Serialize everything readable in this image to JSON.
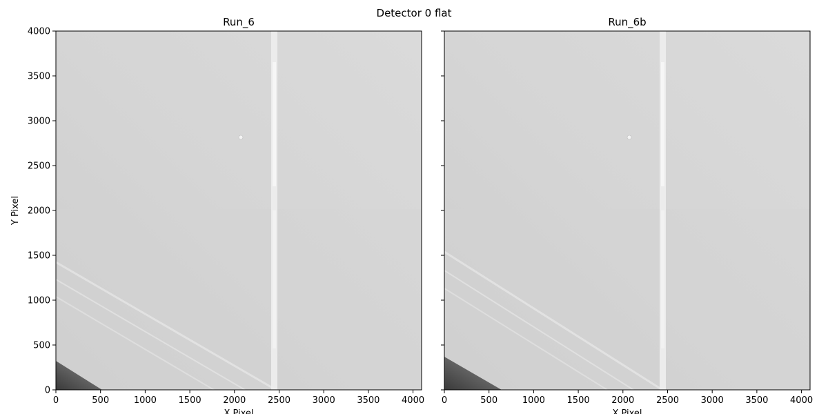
{
  "figure": {
    "title": "Detector 0 flat"
  },
  "chart_data": [
    {
      "type": "heatmap",
      "title": "Run_6",
      "xlabel": "X Pixel",
      "ylabel": "Y Pixel",
      "xlim": [
        0,
        4096
      ],
      "ylim": [
        0,
        4000
      ],
      "xticks": [
        0,
        500,
        1000,
        1500,
        2000,
        2500,
        3000,
        3500,
        4000
      ],
      "yticks": [
        0,
        500,
        1000,
        1500,
        2000,
        2500,
        3000,
        3500,
        4000
      ],
      "colormap": "grayscale",
      "features": {
        "vertical_bright_stripe_x": 2450,
        "bright_spot": [
          2060,
          2810
        ],
        "dark_corner": "bottom-left"
      }
    },
    {
      "type": "heatmap",
      "title": "Run_6b",
      "xlabel": "X Pixel",
      "ylabel": "",
      "xlim": [
        0,
        4096
      ],
      "ylim": [
        0,
        4000
      ],
      "xticks": [
        0,
        500,
        1000,
        1500,
        2000,
        2500,
        3000,
        3500,
        4000
      ],
      "yticks": [
        0,
        500,
        1000,
        1500,
        2000,
        2500,
        3000,
        3500,
        4000
      ],
      "colormap": "grayscale",
      "features": {
        "vertical_bright_stripe_x": 2450,
        "bright_spot": [
          2060,
          2810
        ],
        "dark_corner": "bottom-left"
      }
    }
  ]
}
